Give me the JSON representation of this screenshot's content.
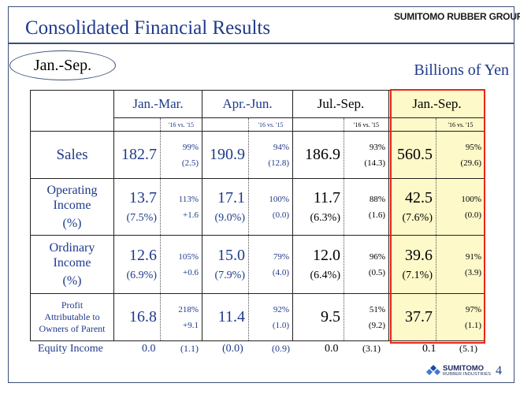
{
  "header": {
    "title": "Consolidated Financial Results",
    "brand": "SUMITOMO RUBBER GROUP",
    "period": "Jan.-Sep.",
    "unit": "Billions of Yen"
  },
  "table": {
    "columns": [
      {
        "label": "Jan.-Mar.",
        "sub": "'16 vs. '15"
      },
      {
        "label": "Apr.-Jun.",
        "sub": "'16 vs. '15"
      },
      {
        "label": "Jul.-Sep.",
        "sub": "'16 vs. '15"
      },
      {
        "label": "Jan.-Sep.",
        "sub": "'16 vs. '15"
      }
    ],
    "rows": {
      "sales": {
        "label": "Sales",
        "cells": [
          {
            "value": "182.7",
            "ratio": "99%",
            "diff": "(2.5)"
          },
          {
            "value": "190.9",
            "ratio": "94%",
            "diff": "(12.8)"
          },
          {
            "value": "186.9",
            "ratio": "93%",
            "diff": "(14.3)"
          },
          {
            "value": "560.5",
            "ratio": "95%",
            "diff": "(29.6)"
          }
        ]
      },
      "operating": {
        "label1": "Operating",
        "label2": "Income",
        "label3": "(%)",
        "cells": [
          {
            "value": "13.7",
            "pct": "(7.5%)",
            "ratio": "113%",
            "diff": "+1.6"
          },
          {
            "value": "17.1",
            "pct": "(9.0%)",
            "ratio": "100%",
            "diff": "(0.0)"
          },
          {
            "value": "11.7",
            "pct": "(6.3%)",
            "ratio": "88%",
            "diff": "(1.6)"
          },
          {
            "value": "42.5",
            "pct": "(7.6%)",
            "ratio": "100%",
            "diff": "(0.0)"
          }
        ]
      },
      "ordinary": {
        "label1": "Ordinary",
        "label2": "Income",
        "label3": "(%)",
        "cells": [
          {
            "value": "12.6",
            "pct": "(6.9%)",
            "ratio": "105%",
            "diff": "+0.6"
          },
          {
            "value": "15.0",
            "pct": "(7.9%)",
            "ratio": "79%",
            "diff": "(4.0)"
          },
          {
            "value": "12.0",
            "pct": "(6.4%)",
            "ratio": "96%",
            "diff": "(0.5)"
          },
          {
            "value": "39.6",
            "pct": "(7.1%)",
            "ratio": "91%",
            "diff": "(3.9)"
          }
        ]
      },
      "profit": {
        "label1": "Profit",
        "label2": "Attributable to",
        "label3": "Owners of Parent",
        "cells": [
          {
            "value": "16.8",
            "ratio": "218%",
            "diff": "+9.1"
          },
          {
            "value": "11.4",
            "ratio": "92%",
            "diff": "(1.0)"
          },
          {
            "value": "9.5",
            "ratio": "51%",
            "diff": "(9.2)"
          },
          {
            "value": "37.7",
            "ratio": "97%",
            "diff": "(1.1)"
          }
        ]
      }
    }
  },
  "equity": {
    "label": "Equity Income",
    "cells": [
      {
        "value": "0.0",
        "diff": "(1.1)"
      },
      {
        "value": "(0.0)",
        "diff": "(0.9)"
      },
      {
        "value": "0.0",
        "diff": "(3.1)"
      },
      {
        "value": "0.1",
        "diff": "(5.1)"
      }
    ]
  },
  "footer": {
    "logo_word": "SUMITOMO",
    "logo_sub": "RUBBER INDUSTRIES",
    "page": "4"
  },
  "colors": {
    "text_blue": "#1f3a8a",
    "highlight_fill": "#fdf9c9",
    "highlight_border": "#e8261a"
  }
}
